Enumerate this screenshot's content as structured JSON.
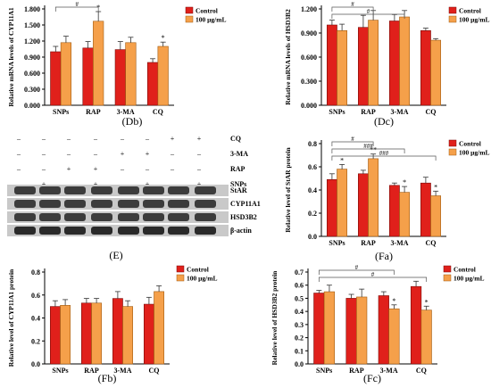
{
  "colors": {
    "control": "#e0201b",
    "treated": "#f5a04a",
    "control_edge": "#7a0d0a",
    "treated_edge": "#a05a10"
  },
  "legend": {
    "control": "Control",
    "treated": "100 μg/mL"
  },
  "chart_data": [
    {
      "id": "Db",
      "type": "bar",
      "label": "(Db)",
      "ylabel": "Relative mRNA levels of CYP11A1",
      "categories": [
        "SNPs",
        "RAP",
        "3-MA",
        "CQ"
      ],
      "yticks": [
        "0.000",
        "0.300",
        "0.600",
        "0.900",
        "1.200",
        "1.500",
        "1.800"
      ],
      "ylim": [
        0,
        1.8
      ],
      "series": [
        {
          "name": "Control",
          "values": [
            1.0,
            1.07,
            1.04,
            0.8
          ],
          "errors": [
            0.1,
            0.12,
            0.15,
            0.07
          ]
        },
        {
          "name": "100 μg/mL",
          "values": [
            1.17,
            1.57,
            1.17,
            1.1
          ],
          "errors": [
            0.12,
            0.18,
            0.1,
            0.08
          ]
        }
      ],
      "stars": [
        {
          "cat": 1,
          "series": 1,
          "text": "*"
        },
        {
          "cat": 3,
          "series": 1,
          "text": "*"
        }
      ],
      "brackets": [
        {
          "from": 0,
          "to": 1,
          "text": "#"
        }
      ]
    },
    {
      "id": "Dc",
      "type": "bar",
      "label": "(Dc)",
      "ylabel": "Relative mRNA levels of HSD3B2",
      "categories": [
        "SNPs",
        "RAP",
        "3-MA",
        "CQ"
      ],
      "yticks": [
        "0.000",
        "0.300",
        "0.600",
        "0.900",
        "1.200"
      ],
      "ylim": [
        0,
        1.2
      ],
      "series": [
        {
          "name": "Control",
          "values": [
            1.0,
            0.97,
            1.05,
            0.93
          ],
          "errors": [
            0.06,
            0.15,
            0.08,
            0.03
          ]
        },
        {
          "name": "100 μg/mL",
          "values": [
            0.93,
            1.06,
            1.1,
            0.81
          ],
          "errors": [
            0.08,
            0.12,
            0.08,
            0.02
          ]
        }
      ],
      "stars": [],
      "brackets": [
        {
          "from": 0,
          "to": 1,
          "text": "#"
        },
        {
          "from": 0,
          "to": 2,
          "text": "#"
        }
      ]
    },
    {
      "id": "Fa",
      "type": "bar",
      "label": "(Fa)",
      "ylabel": "Relative level of StAR protein",
      "categories": [
        "SNPs",
        "RAP",
        "3-MA",
        "CQ"
      ],
      "yticks": [
        "0.0",
        "0.2",
        "0.4",
        "0.6",
        "0.8"
      ],
      "ylim": [
        0,
        0.8
      ],
      "series": [
        {
          "name": "Control",
          "values": [
            0.49,
            0.54,
            0.44,
            0.46
          ],
          "errors": [
            0.05,
            0.03,
            0.02,
            0.05
          ]
        },
        {
          "name": "100 μg/mL",
          "values": [
            0.58,
            0.67,
            0.38,
            0.35
          ],
          "errors": [
            0.04,
            0.04,
            0.05,
            0.04
          ]
        }
      ],
      "stars": [
        {
          "cat": 0,
          "series": 1,
          "text": "*"
        },
        {
          "cat": 1,
          "series": 1,
          "text": "**"
        },
        {
          "cat": 2,
          "series": 1,
          "text": "*"
        },
        {
          "cat": 3,
          "series": 1,
          "text": "*"
        }
      ],
      "brackets": [
        {
          "from": 0,
          "to": 1,
          "text": "#"
        },
        {
          "from": 0,
          "to": 2,
          "text": "###"
        },
        {
          "from": 0,
          "to": 3,
          "text": "###"
        }
      ]
    },
    {
      "id": "Fb",
      "type": "bar",
      "label": "(Fb)",
      "ylabel": "Relative level of CYP11A1 protein",
      "categories": [
        "SNPs",
        "RAP",
        "3-MA",
        "CQ"
      ],
      "yticks": [
        "0.0",
        "0.2",
        "0.4",
        "0.6",
        "0.8"
      ],
      "ylim": [
        0,
        0.8
      ],
      "series": [
        {
          "name": "Control",
          "values": [
            0.5,
            0.53,
            0.57,
            0.52
          ],
          "errors": [
            0.05,
            0.04,
            0.06,
            0.06
          ]
        },
        {
          "name": "100 μg/mL",
          "values": [
            0.51,
            0.53,
            0.5,
            0.63
          ],
          "errors": [
            0.05,
            0.04,
            0.05,
            0.05
          ]
        }
      ],
      "stars": [],
      "brackets": []
    },
    {
      "id": "Fc",
      "type": "bar",
      "label": "(Fc)",
      "ylabel": "Relative level of HSD3B2 protein",
      "categories": [
        "SNPs",
        "RAP",
        "3-MA",
        "CQ"
      ],
      "yticks": [
        "0.0",
        "0.1",
        "0.2",
        "0.3",
        "0.4",
        "0.5",
        "0.6",
        "0.7"
      ],
      "ylim": [
        0,
        0.7
      ],
      "series": [
        {
          "name": "Control",
          "values": [
            0.54,
            0.5,
            0.52,
            0.59
          ],
          "errors": [
            0.02,
            0.03,
            0.03,
            0.04
          ]
        },
        {
          "name": "100 μg/mL",
          "values": [
            0.55,
            0.51,
            0.42,
            0.41
          ],
          "errors": [
            0.05,
            0.06,
            0.03,
            0.03
          ]
        }
      ],
      "stars": [
        {
          "cat": 2,
          "series": 1,
          "text": "*"
        },
        {
          "cat": 3,
          "series": 1,
          "text": "*"
        }
      ],
      "brackets": [
        {
          "from": 0,
          "to": 2,
          "text": "#"
        },
        {
          "from": 0,
          "to": 3,
          "text": "#"
        }
      ]
    }
  ],
  "western_blot": {
    "label": "(E)",
    "treatments": [
      {
        "name": "CQ",
        "signs": [
          "–",
          "–",
          "–",
          "–",
          "–",
          "–",
          "+",
          "+"
        ]
      },
      {
        "name": "3-MA",
        "signs": [
          "–",
          "–",
          "–",
          "–",
          "+",
          "+",
          "–",
          "–"
        ]
      },
      {
        "name": "RAP",
        "signs": [
          "–",
          "–",
          "+",
          "+",
          "–",
          "–",
          "–",
          "–"
        ]
      },
      {
        "name": "SNPs",
        "signs": [
          "–",
          "+",
          "–",
          "+",
          "–",
          "+",
          "–",
          "+"
        ]
      }
    ],
    "bands": [
      "StAR",
      "CYP11A1",
      "HSD3B2",
      "β-actin"
    ]
  }
}
